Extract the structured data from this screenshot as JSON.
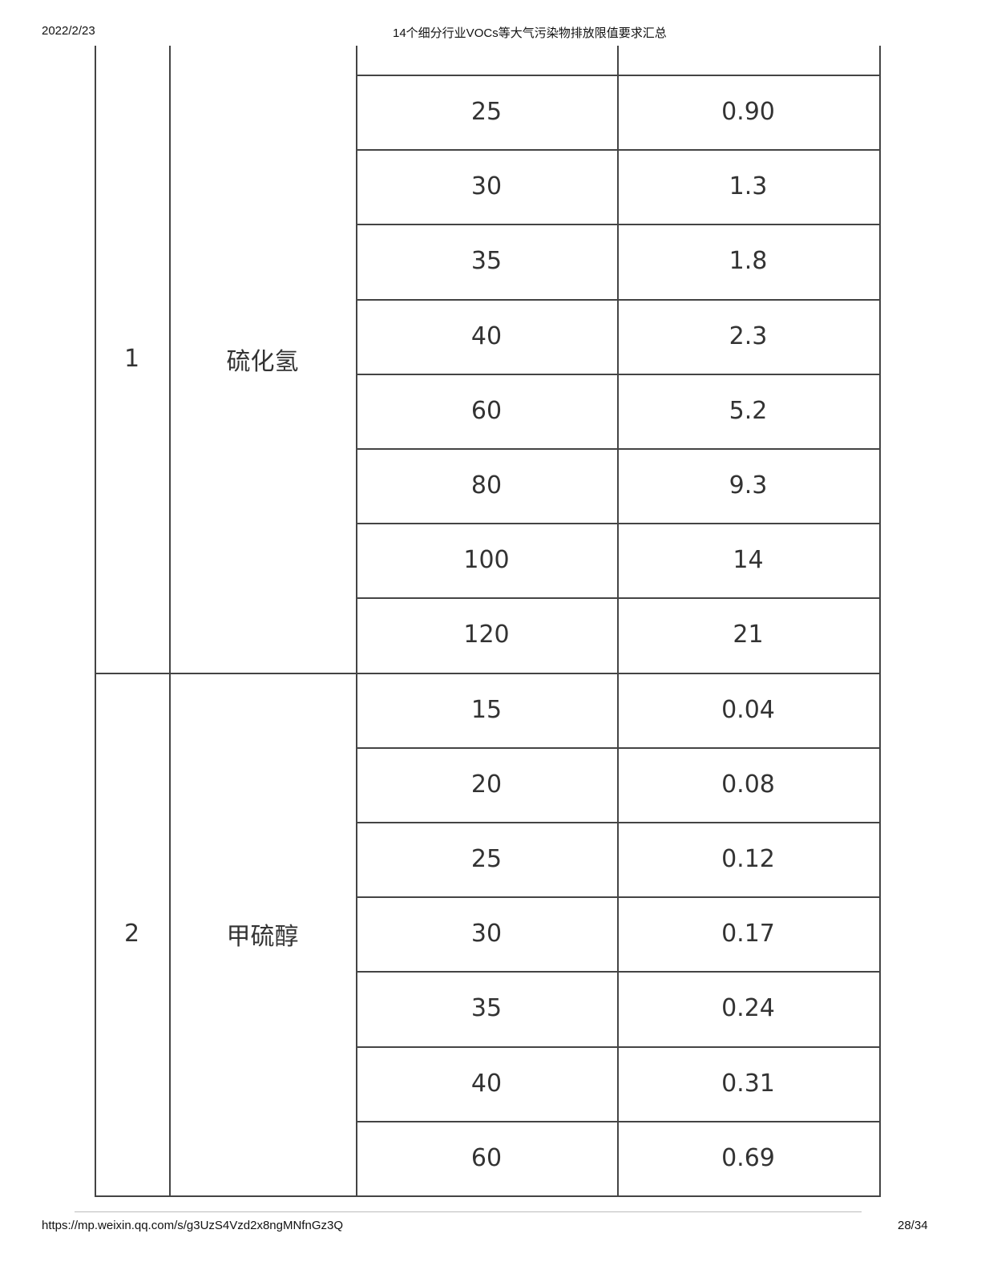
{
  "header": {
    "date": "2022/2/23",
    "title": "14个细分行业VOCs等大气污染物排放限值要求汇总"
  },
  "footer": {
    "url": "https://mp.weixin.qq.com/s/g3UzS4Vzd2x8ngMNfnGz3Q",
    "page": "28/34"
  },
  "table": {
    "groups": [
      {
        "index": "1",
        "name": "硫化氢",
        "rows": [
          [
            "25",
            "0.90"
          ],
          [
            "30",
            "1.3"
          ],
          [
            "35",
            "1.8"
          ],
          [
            "40",
            "2.3"
          ],
          [
            "60",
            "5.2"
          ],
          [
            "80",
            "9.3"
          ],
          [
            "100",
            "14"
          ],
          [
            "120",
            "21"
          ]
        ]
      },
      {
        "index": "2",
        "name": "甲硫醇",
        "rows": [
          [
            "15",
            "0.04"
          ],
          [
            "20",
            "0.08"
          ],
          [
            "25",
            "0.12"
          ],
          [
            "30",
            "0.17"
          ],
          [
            "35",
            "0.24"
          ],
          [
            "40",
            "0.31"
          ],
          [
            "60",
            "0.69"
          ]
        ]
      }
    ]
  }
}
